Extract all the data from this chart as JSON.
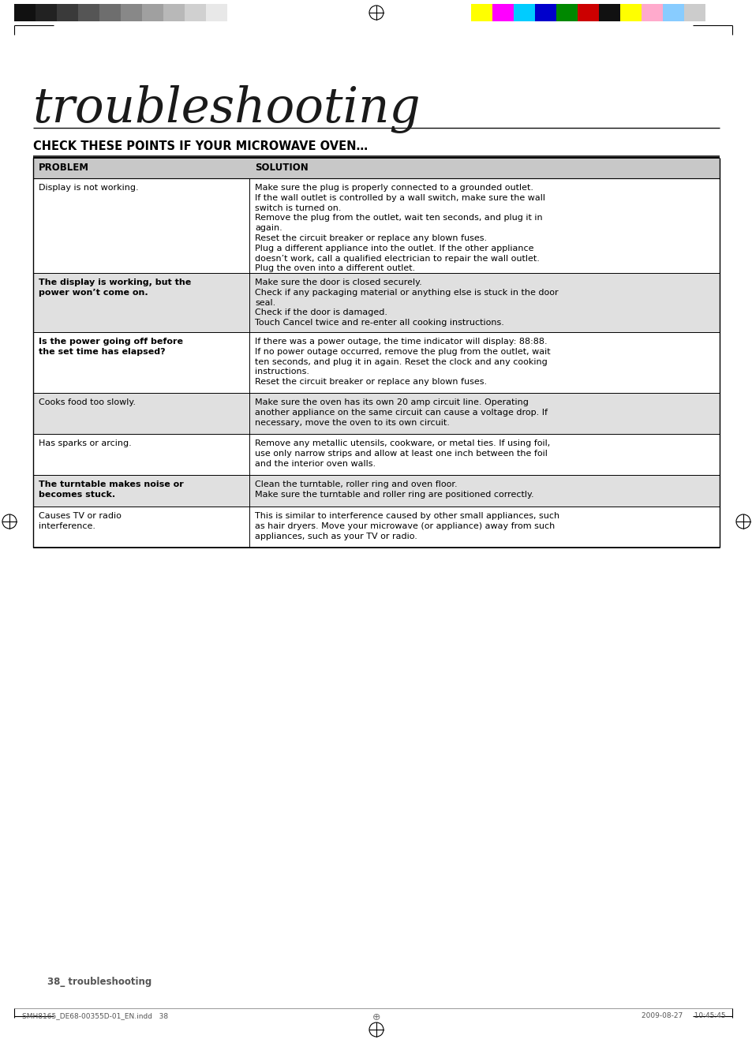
{
  "page_bg": "#ffffff",
  "title_text": "troubleshooting",
  "section_header": "CHECK THESE POINTS IF YOUR MICROWAVE OVEN…",
  "col1_header": "PROBLEM",
  "col2_header": "SOLUTION",
  "table_header_bg": "#c8c8c8",
  "row_alt_bg": "#e0e0e0",
  "row_white_bg": "#ffffff",
  "rows": [
    {
      "problem": "Display is not working.",
      "solution": "Make sure the plug is properly connected to a grounded outlet.\nIf the wall outlet is controlled by a wall switch, make sure the wall\nswitch is turned on.\nRemove the plug from the outlet, wait ten seconds, and plug it in\nagain.\nReset the circuit breaker or replace any blown fuses.\nPlug a different appliance into the outlet. If the other appliance\ndoesn’t work, call a qualified electrician to repair the wall outlet.\nPlug the oven into a different outlet.",
      "prob_bold": false,
      "bg": "#ffffff"
    },
    {
      "problem": "The display is working, but the\npower won’t come on.",
      "solution": "Make sure the door is closed securely.\nCheck if any packaging material or anything else is stuck in the door\nseal.\nCheck if the door is damaged.\nTouch Cancel twice and re-enter all cooking instructions.",
      "prob_bold": true,
      "bg": "#e0e0e0"
    },
    {
      "problem": "Is the power going off before\nthe set time has elapsed?",
      "solution": "If there was a power outage, the time indicator will display: 88:88.\nIf no power outage occurred, remove the plug from the outlet, wait\nten seconds, and plug it in again. Reset the clock and any cooking\ninstructions.\nReset the circuit breaker or replace any blown fuses.",
      "prob_bold": true,
      "bg": "#ffffff",
      "solution_has_mono": true
    },
    {
      "problem": "Cooks food too slowly.",
      "solution": "Make sure the oven has its own 20 amp circuit line. Operating\nanother appliance on the same circuit can cause a voltage drop. If\nnecessary, move the oven to its own circuit.",
      "prob_bold": false,
      "bg": "#e0e0e0"
    },
    {
      "problem": "Has sparks or arcing.",
      "solution": "Remove any metallic utensils, cookware, or metal ties. If using foil,\nuse only narrow strips and allow at least one inch between the foil\nand the interior oven walls.",
      "prob_bold": false,
      "bg": "#ffffff"
    },
    {
      "problem": "The turntable makes noise or\nbecomes stuck.",
      "solution": "Clean the turntable, roller ring and oven floor.\nMake sure the turntable and roller ring are positioned correctly.",
      "prob_bold": true,
      "bg": "#e0e0e0"
    },
    {
      "problem": "Causes TV or radio\ninterference.",
      "solution": "This is similar to interference caused by other small appliances, such\nas hair dryers. Move your microwave (or appliance) away from such\nappliances, such as your TV or radio.",
      "prob_bold": false,
      "bg": "#ffffff"
    }
  ],
  "footer_page": "38_ troubleshooting",
  "footer_left": "SMH8165_DE68-00355D-01_EN.indd   38",
  "footer_right": "2009-08-27     10:45:45",
  "col_split": 0.315,
  "bar_colors_left": [
    "#111111",
    "#222222",
    "#3a3a3a",
    "#555555",
    "#6e6e6e",
    "#888888",
    "#a0a0a0",
    "#b8b8b8",
    "#d0d0d0",
    "#e8e8e8",
    "#ffffff"
  ],
  "bar_colors_right": [
    "#ffff00",
    "#ff00ff",
    "#00ccff",
    "#0000cc",
    "#008800",
    "#cc0000",
    "#111111",
    "#ffff00",
    "#ffaacc",
    "#88ccff",
    "#cccccc"
  ]
}
